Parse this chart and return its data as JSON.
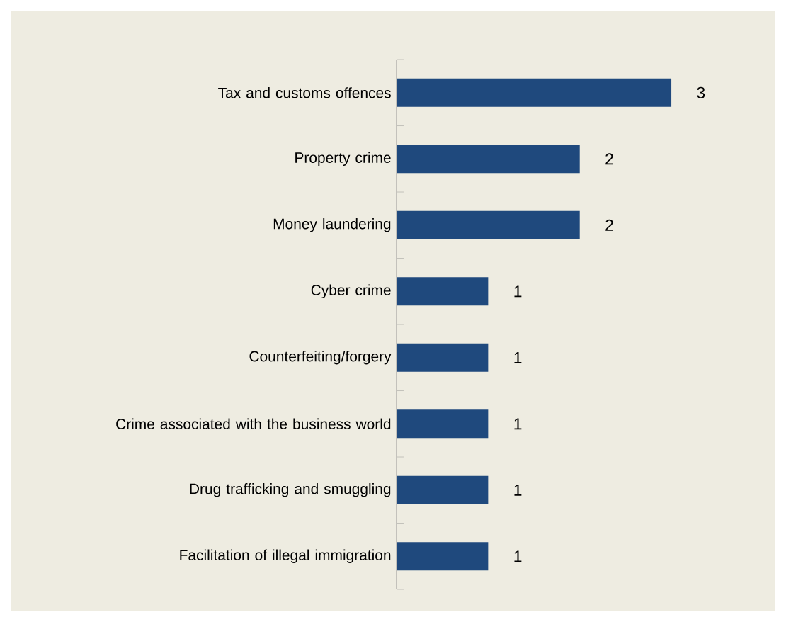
{
  "chart_data": {
    "type": "bar",
    "orientation": "horizontal",
    "categories": [
      "Tax and customs offences",
      "Property crime",
      "Money laundering",
      "Cyber crime",
      "Counterfeiting/forgery",
      "Crime associated with the business world",
      "Drug trafficking and smuggling",
      "Facilitation of illegal immigration"
    ],
    "values": [
      3,
      2,
      2,
      1,
      1,
      1,
      1,
      1
    ],
    "color": "#1f497d",
    "data_labels": true
  }
}
